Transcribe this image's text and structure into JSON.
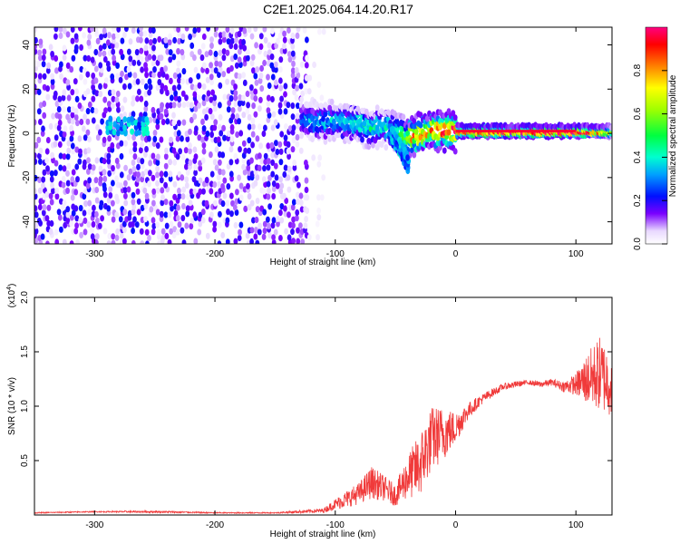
{
  "title": "C2E1.2025.064.14.20.R17",
  "chart_data": [
    {
      "type": "heatmap",
      "xlabel": "Height of straight line (km)",
      "ylabel": "Frequency (Hz)",
      "xlim": [
        -350,
        130
      ],
      "ylim": [
        -50,
        48
      ],
      "xticks": [
        -300,
        -200,
        -100,
        0,
        100
      ],
      "xtick_labels": [
        "-300",
        "-200",
        "-100",
        "0",
        "100"
      ],
      "yticks": [
        40,
        20,
        0,
        -20,
        -40
      ],
      "ytick_labels": [
        "40",
        "20",
        "0",
        "-20",
        "-40"
      ],
      "colorbar": {
        "label": "Normalized spectral amplitude",
        "range": [
          0,
          1
        ],
        "ticks": [
          0,
          0.2,
          0.4,
          0.6,
          0.8
        ],
        "tick_labels": [
          "0.0",
          "0.2",
          "0.4",
          "0.6",
          "0.8"
        ]
      },
      "regions": [
        {
          "name": "broadband noise",
          "x": [
            -350,
            -125
          ],
          "freq": [
            -50,
            48
          ],
          "amplitude": 0.1
        },
        {
          "name": "sparse noise",
          "x": [
            -125,
            -108
          ],
          "freq": [
            -50,
            48
          ],
          "amplitude": 0.03
        },
        {
          "name": "small cluster",
          "x": [
            -290,
            -255
          ],
          "freq": [
            0,
            8
          ],
          "amplitude": 0.3
        }
      ],
      "ridge": {
        "x": [
          -128,
          -120,
          -110,
          -100,
          -90,
          -80,
          -70,
          -60,
          -50,
          -45,
          -40,
          -35,
          -30,
          -20,
          -10,
          0,
          10,
          40,
          80,
          100,
          110,
          120,
          130
        ],
        "freq": [
          7,
          6,
          5,
          6,
          5,
          4,
          2,
          3,
          1,
          -1,
          -2,
          -1,
          0,
          1,
          1,
          1,
          1,
          1,
          1,
          1,
          1,
          1,
          1
        ],
        "amplitude": [
          0.3,
          0.35,
          0.35,
          0.4,
          0.4,
          0.45,
          0.45,
          0.4,
          0.45,
          0.5,
          0.7,
          0.8,
          0.85,
          0.9,
          0.9,
          0.95,
          1.0,
          1.0,
          1.0,
          1.0,
          0.95,
          0.8,
          0.6
        ]
      },
      "tail": {
        "x": [
          -55,
          -45,
          -40
        ],
        "freq": [
          0,
          -8,
          -14
        ],
        "amplitude": 0.35
      }
    },
    {
      "type": "line",
      "xlabel": "Height of straight line (km)",
      "ylabel": "SNR (10 * v/v)",
      "y_multiplier": "(x10",
      "y_multiplier_exp": "4",
      "y_multiplier_close": ")",
      "xlim": [
        -350,
        130
      ],
      "ylim": [
        0,
        2.0
      ],
      "xticks": [
        -300,
        -200,
        -100,
        0,
        100
      ],
      "xtick_labels": [
        "-300",
        "-200",
        "-100",
        "0",
        "100"
      ],
      "yticks": [
        0.5,
        1.0,
        1.5,
        2.0
      ],
      "ytick_labels": [
        "0.5",
        "1.0",
        "1.5",
        "2.0"
      ],
      "series": [
        {
          "color": "#f03a3a",
          "x": [
            -350,
            -300,
            -250,
            -200,
            -150,
            -110,
            -100,
            -90,
            -80,
            -70,
            -60,
            -50,
            -40,
            -30,
            -20,
            -10,
            0,
            10,
            20,
            30,
            40,
            50,
            60,
            70,
            80,
            90,
            100,
            110,
            120,
            130
          ],
          "y": [
            0.02,
            0.03,
            0.03,
            0.02,
            0.02,
            0.04,
            0.1,
            0.15,
            0.2,
            0.3,
            0.25,
            0.18,
            0.35,
            0.45,
            0.7,
            0.75,
            0.8,
            0.95,
            1.05,
            1.12,
            1.18,
            1.2,
            1.22,
            1.2,
            1.22,
            1.18,
            1.2,
            1.25,
            1.3,
            1.2
          ],
          "noise": [
            0.005,
            0.005,
            0.01,
            0.005,
            0.005,
            0.02,
            0.05,
            0.08,
            0.1,
            0.15,
            0.12,
            0.1,
            0.2,
            0.3,
            0.3,
            0.25,
            0.15,
            0.08,
            0.05,
            0.04,
            0.03,
            0.03,
            0.02,
            0.03,
            0.03,
            0.05,
            0.1,
            0.25,
            0.35,
            0.3
          ]
        }
      ]
    }
  ]
}
